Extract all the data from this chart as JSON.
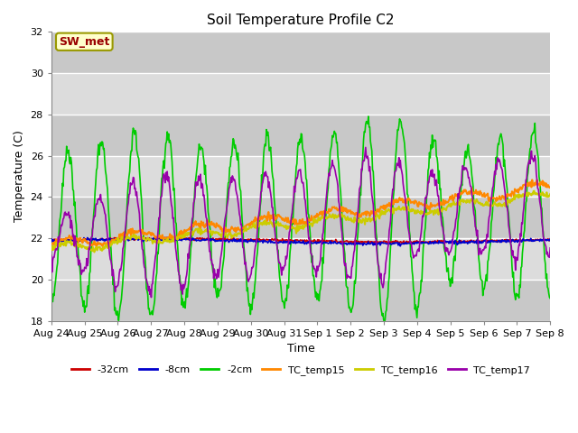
{
  "title": "Soil Temperature Profile C2",
  "xlabel": "Time",
  "ylabel": "Temperature (C)",
  "ylim": [
    18,
    32
  ],
  "yticks": [
    18,
    20,
    22,
    24,
    26,
    28,
    30,
    32
  ],
  "background_color": "#ffffff",
  "plot_bg_color": "#dcdcdc",
  "band_light": "#dcdcdc",
  "band_dark": "#c8c8c8",
  "grid_color": "#ffffff",
  "annotation_text": "SW_met",
  "annotation_bg": "#ffffcc",
  "annotation_border": "#999900",
  "annotation_text_color": "#990000",
  "series": {
    "-32cm": {
      "color": "#cc0000",
      "lw": 1.2
    },
    "-8cm": {
      "color": "#0000cc",
      "lw": 1.2
    },
    "-2cm": {
      "color": "#00cc00",
      "lw": 1.2
    },
    "TC_temp15": {
      "color": "#ff8800",
      "lw": 1.5
    },
    "TC_temp16": {
      "color": "#cccc00",
      "lw": 1.5
    },
    "TC_temp17": {
      "color": "#9900aa",
      "lw": 1.2
    }
  },
  "x_tick_labels": [
    "Aug 24",
    "Aug 25",
    "Aug 26",
    "Aug 27",
    "Aug 28",
    "Aug 29",
    "Aug 30",
    "Aug 31",
    "Sep 1",
    "Sep 2",
    "Sep 3",
    "Sep 4",
    "Sep 5",
    "Sep 6",
    "Sep 7",
    "Sep 8"
  ],
  "n_days": 15
}
